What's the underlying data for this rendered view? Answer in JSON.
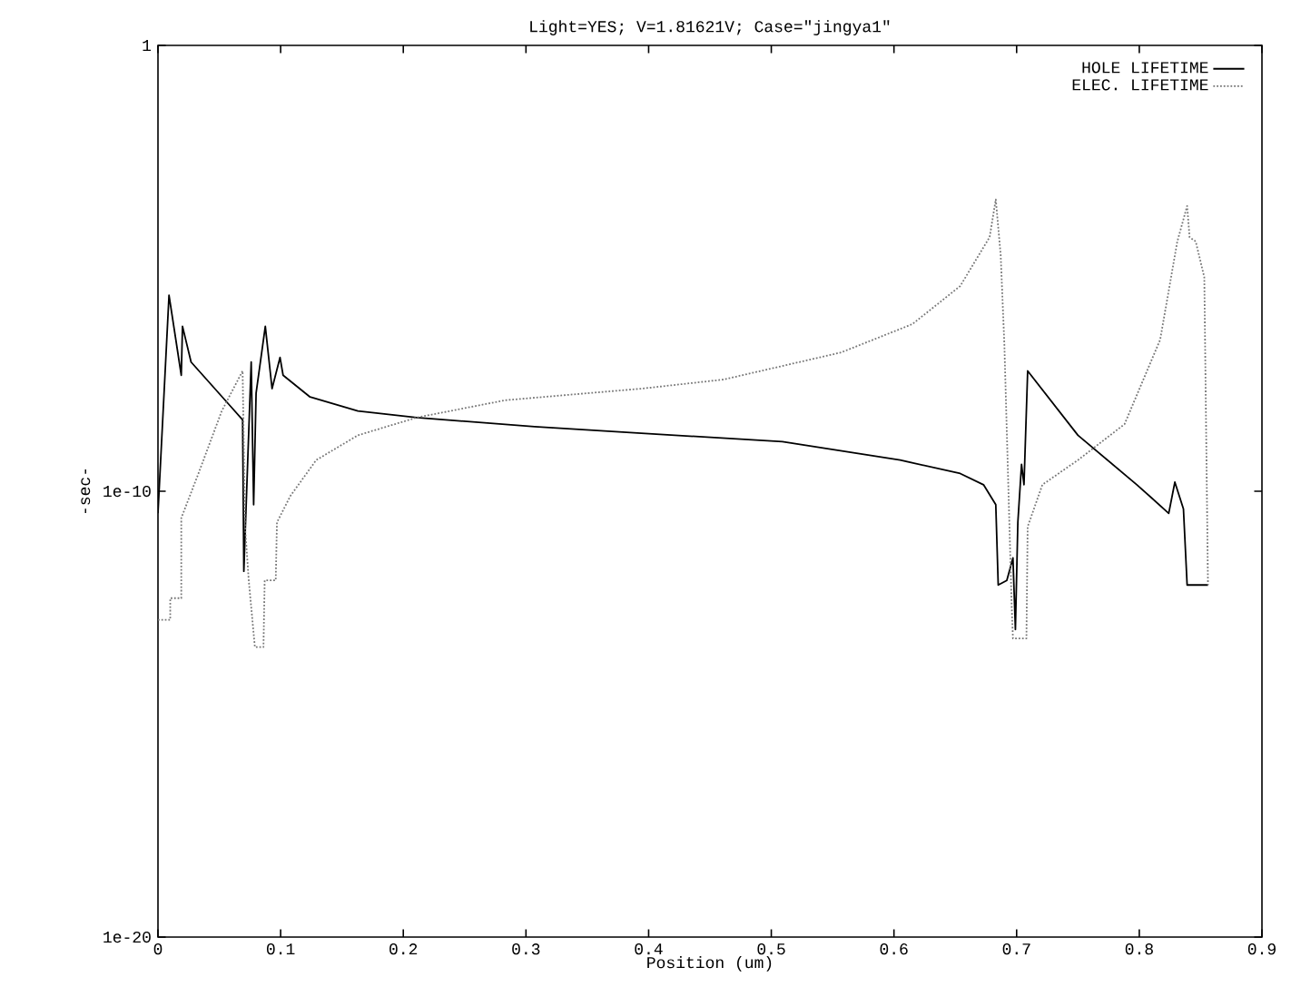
{
  "chart_data": {
    "type": "line",
    "title": "Light=YES; V=1.81621V; Case=\"jingya1\"",
    "xlabel": "Position (um)",
    "ylabel": "-sec-",
    "log": "y",
    "xlim": [
      0,
      0.9
    ],
    "ylim": [
      1e-20,
      1
    ],
    "xticks": [
      0,
      0.1,
      0.2,
      0.3,
      0.4,
      0.5,
      0.6,
      0.7,
      0.8,
      0.9
    ],
    "yticks": [
      {
        "value": 1e-20,
        "label": "1e-20"
      },
      {
        "value": 1e-10,
        "label": "1e-10"
      },
      1
    ],
    "legend": "top right",
    "grid": false,
    "marker": "none",
    "series": [
      {
        "name": "HOLE LIFETIME",
        "color": "#000000",
        "line_style": "solid",
        "x": [
          0,
          0.009,
          0.019,
          0.02,
          0.027,
          0.069,
          0.07,
          0.076,
          0.078,
          0.08,
          0.0875,
          0.093,
          0.0995,
          0.102,
          0.124,
          0.163,
          0.211,
          0.307,
          0.394,
          0.509,
          0.605,
          0.654,
          0.673,
          0.683,
          0.685,
          0.692,
          0.697,
          0.699,
          0.701,
          0.704,
          0.706,
          0.709,
          0.75,
          0.798,
          0.824,
          0.829,
          0.836,
          0.839,
          0.856
        ],
        "values": [
          3.2e-11,
          2.5e-06,
          4e-08,
          5e-07,
          7.9e-08,
          4e-09,
          1.6e-12,
          7.9e-08,
          5e-11,
          1.6e-08,
          5e-07,
          2e-08,
          1e-07,
          4e-08,
          1.3e-08,
          6.3e-09,
          4.5e-09,
          2.8e-09,
          2e-09,
          1.3e-09,
          5e-10,
          2.5e-10,
          1.4e-10,
          5e-11,
          7.9e-13,
          1e-12,
          3.2e-12,
          7.9e-14,
          2e-11,
          4e-10,
          1.4e-10,
          5e-08,
          1.8e-09,
          1.4e-10,
          3.2e-11,
          1.6e-10,
          4e-11,
          7.9e-13,
          7.9e-13
        ]
      },
      {
        "name": "ELEC. LIFETIME",
        "color": "#777777",
        "line_style": "dotted",
        "x": [
          0,
          0.01,
          0.01,
          0.019,
          0.019,
          0.033,
          0.052,
          0.069,
          0.071,
          0.074,
          0.079,
          0.086,
          0.087,
          0.096,
          0.097,
          0.108,
          0.129,
          0.163,
          0.211,
          0.283,
          0.394,
          0.461,
          0.557,
          0.615,
          0.654,
          0.678,
          0.683,
          0.687,
          0.69,
          0.696,
          0.697,
          0.708,
          0.709,
          0.721,
          0.75,
          0.788,
          0.817,
          0.831,
          0.839,
          0.841,
          0.846,
          0.853,
          0.856
        ],
        "values": [
          1.3e-13,
          1.3e-13,
          4e-13,
          4e-13,
          2.5e-11,
          2.5e-10,
          6.3e-09,
          5e-08,
          1.6e-11,
          1e-12,
          3.2e-14,
          3.2e-14,
          1e-12,
          1e-12,
          2e-11,
          7.9e-11,
          5e-10,
          1.8e-09,
          4.5e-09,
          1.1e-08,
          2e-08,
          3.2e-08,
          1.3e-07,
          5.6e-07,
          4e-06,
          5e-05,
          0.00035,
          2e-05,
          2e-07,
          2.5e-13,
          5e-14,
          5e-14,
          1.6e-11,
          1.4e-10,
          5e-10,
          3.2e-09,
          2.5e-07,
          4e-05,
          0.00025,
          5e-05,
          4e-05,
          6.3e-06,
          7.9e-13
        ]
      }
    ]
  }
}
